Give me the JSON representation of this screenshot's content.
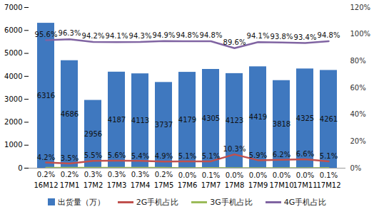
{
  "chart_data": {
    "type": "bar",
    "categories": [
      "16M12",
      "17M1",
      "17M2",
      "17M3",
      "17M4",
      "17M5",
      "17M6",
      "17M7",
      "17M8",
      "17M9",
      "17M10",
      "17M11",
      "17M12"
    ],
    "series": [
      {
        "name": "出货量（万）",
        "type": "bar",
        "color": "#3f78bf",
        "values": [
          6316,
          4686,
          2956,
          4187,
          4113,
          3737,
          4179,
          4305,
          4123,
          4419,
          3818,
          4325,
          4261
        ]
      },
      {
        "name": "2G手机占比",
        "type": "line",
        "axis": "y2",
        "color": "#c0504d",
        "values": [
          4.2,
          3.5,
          5.5,
          5.6,
          5.4,
          4.9,
          5.1,
          5.1,
          10.3,
          5.9,
          6.2,
          6.6,
          5.1
        ],
        "value_labels": [
          "4.2%",
          "3.5%",
          "5.5%",
          "5.6%",
          "5.4%",
          "4.9%",
          "5.1%",
          "5.1%",
          "10.3%",
          "5.9%",
          "6.2%",
          "6.6%",
          "5.1%"
        ]
      },
      {
        "name": "3G手机占比",
        "type": "line",
        "axis": "y2",
        "color": "#9bbb59",
        "values": [
          0.2,
          0.2,
          0.3,
          0.3,
          0.3,
          0.2,
          0,
          0.1,
          0,
          0,
          0,
          0,
          0.1
        ],
        "value_labels": [
          "0.2%",
          "0.2%",
          "0.3%",
          "0.3%",
          "0.3%",
          "0.2%",
          "0.0%",
          "0.1%",
          "0.0%",
          "0.0%",
          "0.0%",
          "0.0%",
          "0.1%"
        ]
      },
      {
        "name": "4G手机占比",
        "type": "line",
        "axis": "y2",
        "color": "#8064a2",
        "values": [
          95.6,
          96.3,
          94.2,
          94.1,
          94.3,
          94.9,
          94.8,
          94.8,
          89.6,
          94.1,
          93.8,
          93.4,
          94.8
        ],
        "value_labels": [
          "95.6%",
          "96.3%",
          "94.2%",
          "94.1%",
          "94.3%",
          "94.9%",
          "94.8%",
          "94.8%",
          "89.6%",
          "94.1%",
          "93.8%",
          "93.4%",
          "94.8%"
        ]
      }
    ],
    "ylim": [
      0,
      7000
    ],
    "yticks": [
      0,
      1000,
      2000,
      3000,
      4000,
      5000,
      6000,
      7000
    ],
    "y2lim": [
      0,
      120
    ],
    "y2ticks": [
      {
        "value": 0,
        "label": "0%"
      },
      {
        "value": 20,
        "label": "20%"
      },
      {
        "value": 40,
        "label": "40%"
      },
      {
        "value": 60,
        "label": "60%"
      },
      {
        "value": 80,
        "label": "80%"
      },
      {
        "value": 100,
        "label": "100%"
      },
      {
        "value": 120,
        "label": "120%"
      }
    ],
    "grid": false,
    "legend": "bottom",
    "data_labels": true
  }
}
